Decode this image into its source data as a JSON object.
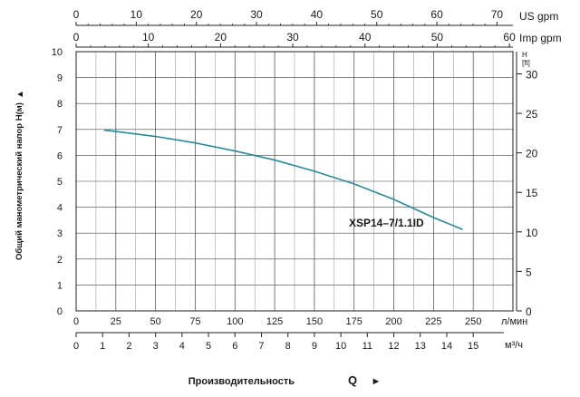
{
  "chart_data": {
    "type": "line",
    "title": "",
    "curve_label": "XSP14–7/1.1ID",
    "ylabel": "Общий манометрический напор H(м)",
    "ylabel_arrow": "▲",
    "xlabel": "Производительность",
    "xlabel_q": "Q",
    "xlabel_arrow": "►",
    "ylim": [
      0,
      10
    ],
    "y_ticks": [
      0,
      1,
      2,
      3,
      4,
      5,
      6,
      7,
      8,
      9,
      10
    ],
    "xlim_lpm": [
      0,
      275
    ],
    "x_ticks_lpm": [
      0,
      25,
      50,
      75,
      100,
      125,
      150,
      175,
      200,
      225,
      250
    ],
    "x_unit_lpm": "л/мин",
    "x_ticks_m3h": [
      0,
      1,
      2,
      3,
      4,
      5,
      6,
      7,
      8,
      9,
      10,
      11,
      12,
      13,
      14,
      15
    ],
    "x_unit_m3h": "м³/ч",
    "x_ticks_usgpm": [
      0,
      10,
      20,
      30,
      40,
      50,
      60,
      70
    ],
    "x_unit_usgpm": "US gpm",
    "x_ticks_impgpm": [
      0,
      10,
      20,
      30,
      40,
      50,
      60
    ],
    "x_unit_impgpm": "Imp gpm",
    "y2_ticks_ft": [
      0,
      5,
      10,
      15,
      20,
      25,
      30
    ],
    "y2_label": "H",
    "y2_unit": "[ft]",
    "grid": true,
    "line_color": "#2a8a9a",
    "series": [
      {
        "name": "",
        "x": [
          18,
          25,
          50,
          75,
          100,
          125,
          150,
          175,
          200,
          225,
          243
        ],
        "y": [
          6.97,
          6.92,
          6.73,
          6.48,
          6.17,
          5.82,
          5.39,
          4.9,
          4.3,
          3.6,
          3.15
        ]
      }
    ]
  }
}
